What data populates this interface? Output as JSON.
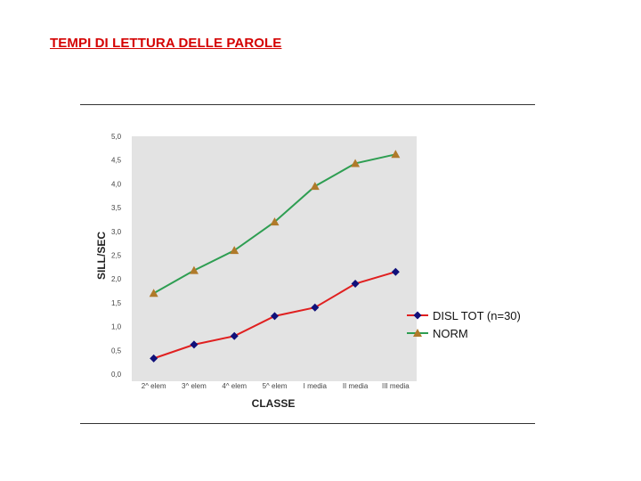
{
  "page": {
    "title": "TEMPI DI LETTURA DELLE PAROLE",
    "title_color": "#d40000"
  },
  "chart_data": {
    "type": "line",
    "title": "",
    "xlabel": "CLASSE",
    "ylabel": "SILL/SEC",
    "categories": [
      "2^ elem",
      "3^ elem",
      "4^ elem",
      "5^ elem",
      "I media",
      "II media",
      "III media"
    ],
    "ylim": [
      0,
      5
    ],
    "yticks": [
      "0,0",
      "0,5",
      "1,0",
      "1,5",
      "2,0",
      "2,5",
      "3,0",
      "3,5",
      "4,0",
      "4,5",
      "5,0"
    ],
    "plot_background": "#e3e3e3",
    "grid": false,
    "legend_position": "right",
    "series": [
      {
        "name": "DISL TOT (n=30)",
        "values": [
          0.33,
          0.62,
          0.8,
          1.22,
          1.4,
          1.9,
          2.15
        ],
        "line_color": "#e02020",
        "marker": "diamond",
        "marker_color": "#10107a"
      },
      {
        "name": "NORM",
        "values": [
          1.7,
          2.18,
          2.6,
          3.2,
          3.95,
          4.43,
          4.62
        ],
        "line_color": "#2e9e52",
        "marker": "triangle",
        "marker_color": "#b07a2a"
      }
    ]
  }
}
